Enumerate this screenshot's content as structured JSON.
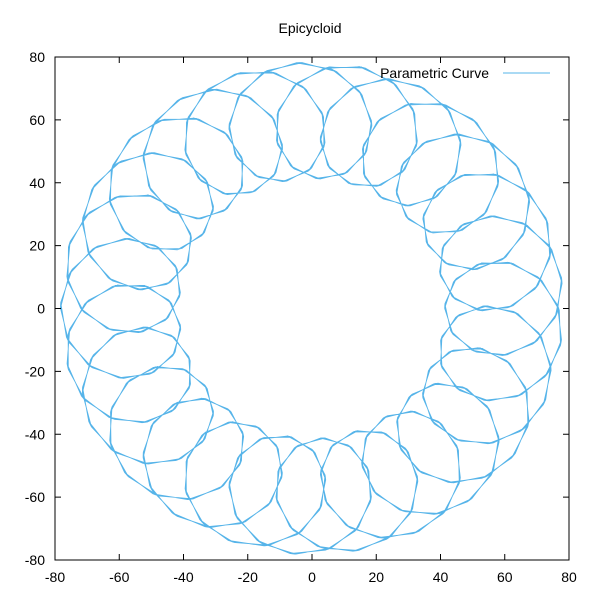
{
  "chart_data": {
    "type": "line",
    "title": "Epicycloid",
    "xlabel": "",
    "ylabel": "",
    "xlim": [
      -80,
      80
    ],
    "ylim": [
      -80,
      80
    ],
    "x_ticks": [
      -80,
      -60,
      -40,
      -20,
      0,
      20,
      40,
      60,
      80
    ],
    "y_ticks": [
      -80,
      -60,
      -40,
      -20,
      0,
      20,
      40,
      60,
      80
    ],
    "grid": false,
    "legend_position": "top-right",
    "series": [
      {
        "name": "Parametric Curve",
        "color": "#56b4e9",
        "curve": {
          "kind": "epicycloid",
          "R": 57.5,
          "r": 2.3,
          "d": 18.5,
          "t_range": [
            0,
            125.66
          ],
          "samples": 6000
        }
      }
    ]
  }
}
